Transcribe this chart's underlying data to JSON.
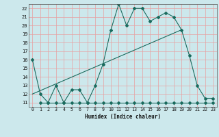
{
  "xlabel": "Humidex (Indice chaleur)",
  "bg_color": "#cce8ec",
  "line_color": "#1a6b5e",
  "grid_color_major": "#e8a0a0",
  "xlim": [
    -0.5,
    23.5
  ],
  "ylim": [
    10.5,
    22.5
  ],
  "xticks": [
    0,
    1,
    2,
    3,
    4,
    5,
    6,
    7,
    8,
    9,
    10,
    11,
    12,
    13,
    14,
    15,
    16,
    17,
    18,
    19,
    20,
    21,
    22,
    23
  ],
  "yticks": [
    11,
    12,
    13,
    14,
    15,
    16,
    17,
    18,
    19,
    20,
    21,
    22
  ],
  "series": [
    {
      "x": [
        0,
        1,
        2,
        3,
        4,
        5,
        6,
        7,
        8,
        9,
        10,
        11,
        12,
        13,
        14,
        15,
        16,
        17,
        18,
        19,
        20,
        21,
        22,
        23
      ],
      "y": [
        16,
        12,
        11,
        13,
        11,
        12.5,
        12.5,
        11,
        13,
        15.5,
        19.5,
        22.5,
        20,
        22,
        22,
        20.5,
        21,
        21.5,
        21,
        19.5,
        16.5,
        13,
        11.5,
        11.5
      ]
    },
    {
      "x": [
        1,
        2,
        3,
        4,
        5,
        6,
        7,
        8,
        9,
        10,
        11,
        12,
        13,
        14,
        15,
        16,
        17,
        18,
        19,
        20,
        21,
        22,
        23
      ],
      "y": [
        11,
        11,
        11,
        11,
        11,
        11,
        11,
        11,
        11,
        11,
        11,
        11,
        11,
        11,
        11,
        11,
        11,
        11,
        11,
        11,
        11,
        11,
        11
      ]
    },
    {
      "x": [
        0,
        19
      ],
      "y": [
        12,
        19.5
      ],
      "no_markers": true
    }
  ]
}
